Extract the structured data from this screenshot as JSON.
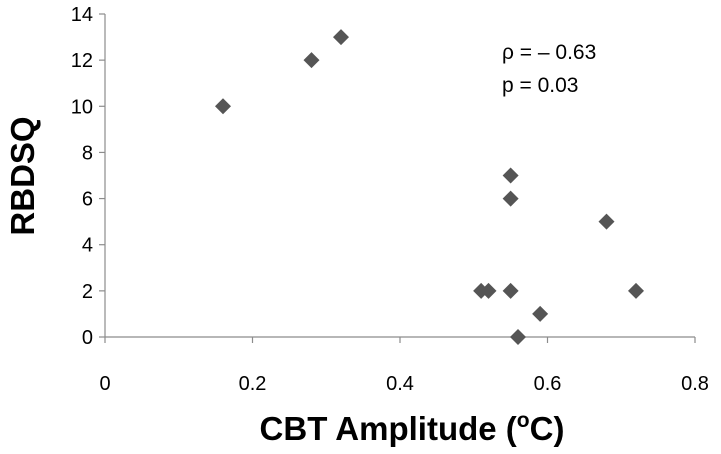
{
  "chart_data": {
    "type": "scatter",
    "title": "",
    "xlabel": "CBT Amplitude (",
    "xlabel_sup": "o",
    "xlabel_tail": "C)",
    "ylabel": "RBDSQ",
    "xlim": [
      0,
      0.8
    ],
    "ylim": [
      0,
      14
    ],
    "xticks": [
      "0",
      "0.2",
      "0.4",
      "0.6",
      "0.8"
    ],
    "yticks": [
      "0",
      "2",
      "4",
      "6",
      "8",
      "10",
      "12",
      "14"
    ],
    "grid": false,
    "marker_color": "#555555",
    "marker": "diamond",
    "annotations": [
      "ρ = – 0.63",
      "p = 0.03"
    ],
    "points": [
      {
        "x": 0.16,
        "y": 10
      },
      {
        "x": 0.28,
        "y": 12
      },
      {
        "x": 0.32,
        "y": 13
      },
      {
        "x": 0.51,
        "y": 2
      },
      {
        "x": 0.52,
        "y": 2
      },
      {
        "x": 0.55,
        "y": 7
      },
      {
        "x": 0.55,
        "y": 6
      },
      {
        "x": 0.55,
        "y": 2
      },
      {
        "x": 0.56,
        "y": 0
      },
      {
        "x": 0.59,
        "y": 1
      },
      {
        "x": 0.68,
        "y": 5
      },
      {
        "x": 0.72,
        "y": 2
      }
    ]
  }
}
